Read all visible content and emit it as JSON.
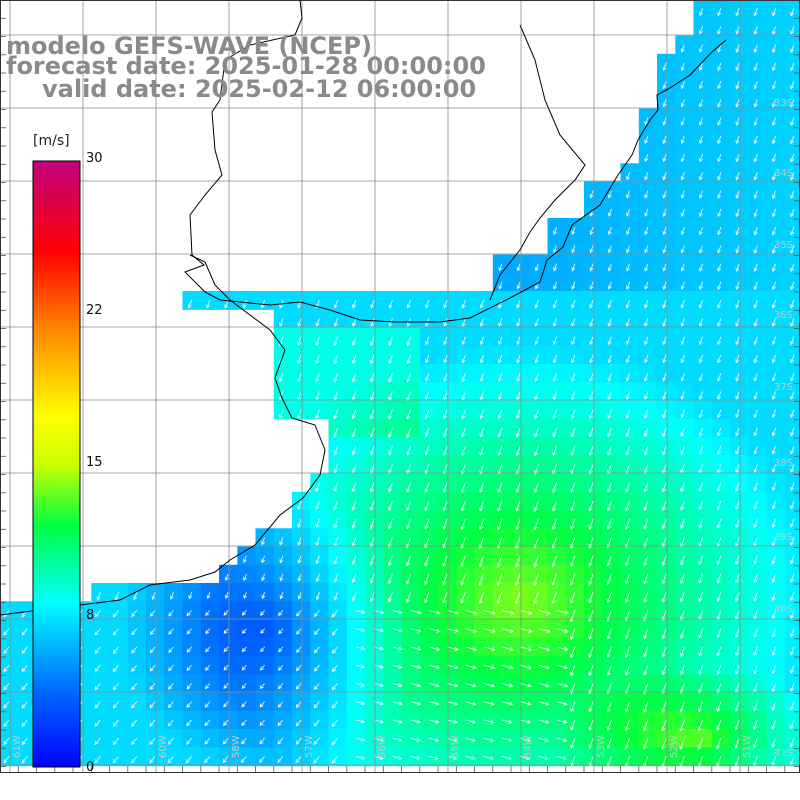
{
  "title": {
    "line1": "modelo GEFS-WAVE (NCEP)",
    "line2": "forecast date: 2025-01-28 00:00:00",
    "line3": "valid date: 2025-02-12 06:00:00"
  },
  "colorbar": {
    "unit": "[m/s]",
    "min": 0,
    "max": 30,
    "ticks": [
      "30",
      "22",
      "15",
      "8",
      "0"
    ],
    "tick_values": [
      30,
      22,
      15,
      8,
      0
    ],
    "colors": [
      "#0000ff",
      "#0088ff",
      "#00ffff",
      "#00ff00",
      "#ffff00",
      "#ff8800",
      "#ff0000",
      "#c00080"
    ]
  },
  "axes": {
    "lon_labels": [
      "61W",
      "60W",
      "58W",
      "57W",
      "56W",
      "55W",
      "54W",
      "53W",
      "52W",
      "51W"
    ],
    "lat_labels": [
      "33S",
      "34S",
      "35S",
      "36S",
      "37S",
      "38S",
      "39S",
      "40S",
      "41S"
    ]
  },
  "field": {
    "variable": "wind speed",
    "units": "m/s",
    "arrow_color": "#ffffff",
    "land_color": "#ffffff",
    "coast_color": "#000000",
    "grid_color": "#8c8c8c"
  }
}
